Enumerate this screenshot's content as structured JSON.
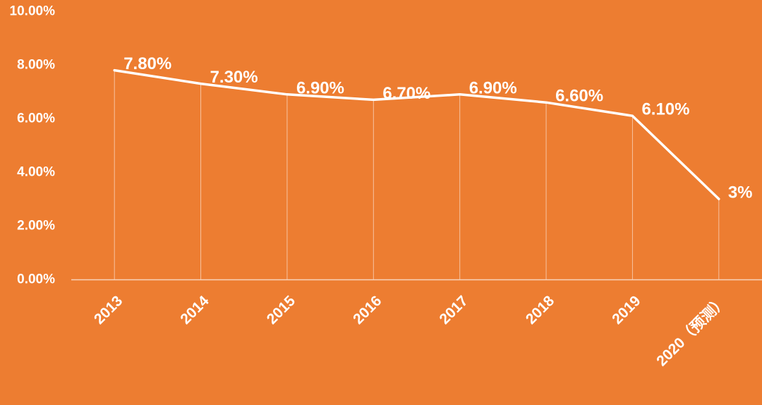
{
  "chart_data": {
    "type": "line",
    "categories": [
      "2013",
      "2014",
      "2015",
      "2016",
      "2017",
      "2018",
      "2019",
      "2020（预测）"
    ],
    "series": [
      {
        "values": [
          7.8,
          7.3,
          6.9,
          6.7,
          6.9,
          6.6,
          6.1,
          3.0
        ],
        "labels": [
          "7.80%",
          "7.30%",
          "6.90%",
          "6.70%",
          "6.90%",
          "6.60%",
          "6.10%",
          "3%"
        ]
      }
    ],
    "y_ticks": [
      "0.00%",
      "2.00%",
      "4.00%",
      "6.00%",
      "8.00%",
      "10.00%"
    ],
    "ylim": [
      0,
      10
    ],
    "title": "",
    "xlabel": "",
    "ylabel": "",
    "grid": false,
    "drop_lines": true,
    "legend": "none"
  },
  "colors": {
    "background": "#ED7D31",
    "line": "#FFFFFF",
    "text": "#FFFFFF",
    "drop_line": "#F6C2A0",
    "axis": "#F8D3BA"
  }
}
